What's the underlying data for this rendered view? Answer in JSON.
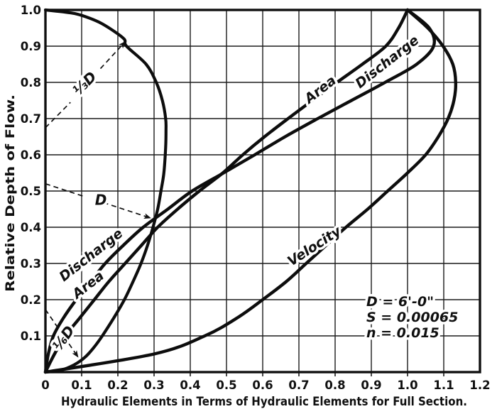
{
  "figure": {
    "background": "#ffffff",
    "ink": "#111111"
  },
  "chart_data": {
    "type": "line",
    "xlabel": "Hydraulic Elements in Terms of Hydraulic Elements for Full Section.",
    "ylabel": "Relative Depth of Flow.",
    "xlim": [
      0,
      1.2
    ],
    "ylim": [
      0,
      1.0
    ],
    "grid": "on, 0.1 spacing on both axes",
    "x_tick_labels": [
      "0",
      "0.1",
      "0.2",
      "0.3",
      "0.4",
      "0.5",
      "0.6",
      "0.7",
      "0.8",
      "0.9",
      "1.0",
      "1.1",
      "1.2"
    ],
    "y_tick_labels_top_to_bottom": [
      "1.0",
      "0.9",
      "0.8",
      "0.7",
      "0.6",
      "0.5",
      "0.4",
      "0.3",
      "0.2",
      "0.1"
    ],
    "series": [
      {
        "name": "Area",
        "depth": [
          0,
          0.05,
          0.1,
          0.15,
          0.2,
          0.25,
          0.3,
          0.35,
          0.4,
          0.45,
          0.5,
          0.55,
          0.6,
          0.65,
          0.7,
          0.75,
          0.8,
          0.85,
          0.9,
          0.95,
          1.0
        ],
        "values": [
          0,
          0.025,
          0.055,
          0.095,
          0.135,
          0.175,
          0.22,
          0.265,
          0.31,
          0.365,
          0.425,
          0.49,
          0.545,
          0.605,
          0.67,
          0.737,
          0.805,
          0.875,
          0.94,
          0.975,
          1.0
        ]
      },
      {
        "name": "Discharge",
        "depth": [
          0,
          0.05,
          0.1,
          0.15,
          0.2,
          0.25,
          0.3,
          0.35,
          0.4,
          0.45,
          0.5,
          0.55,
          0.6,
          0.65,
          0.7,
          0.75,
          0.8,
          0.85,
          0.9,
          0.95,
          1.0
        ],
        "values": [
          0,
          0.008,
          0.022,
          0.05,
          0.085,
          0.125,
          0.165,
          0.215,
          0.27,
          0.338,
          0.405,
          0.492,
          0.578,
          0.662,
          0.752,
          0.845,
          0.938,
          1.025,
          1.072,
          1.06,
          1.0
        ]
      },
      {
        "name": "Velocity",
        "depth": [
          0,
          0.05,
          0.1,
          0.15,
          0.2,
          0.25,
          0.3,
          0.35,
          0.4,
          0.45,
          0.5,
          0.55,
          0.6,
          0.65,
          0.7,
          0.75,
          0.8,
          0.85,
          0.9,
          0.95,
          1.0
        ],
        "values": [
          0,
          0.3,
          0.44,
          0.53,
          0.6,
          0.665,
          0.72,
          0.775,
          0.83,
          0.89,
          0.945,
          1.0,
          1.05,
          1.085,
          1.112,
          1.128,
          1.133,
          1.125,
          1.098,
          1.056,
          1.0
        ]
      }
    ],
    "section_profile": {
      "name": "egg-shaped-section-half-profile",
      "depth": [
        1.0,
        0.99,
        0.97,
        0.95,
        0.92,
        0.9,
        0.85,
        0.8,
        0.75,
        0.7,
        0.667,
        0.62,
        0.55,
        0.5,
        0.45,
        0.4,
        0.35,
        0.3,
        0.25,
        0.2,
        0.15,
        0.1,
        0.067,
        0.04,
        0.02,
        0.005,
        0
      ],
      "half_width": [
        0,
        0.081,
        0.14,
        0.176,
        0.217,
        0.224,
        0.278,
        0.306,
        0.323,
        0.332,
        0.333,
        0.332,
        0.327,
        0.319,
        0.31,
        0.297,
        0.282,
        0.264,
        0.242,
        0.218,
        0.189,
        0.157,
        0.133,
        0.108,
        0.079,
        0.041,
        0
      ]
    },
    "section_annotations": [
      {
        "id": "one-third-d",
        "label": "⅓D",
        "label_at": [
          0.11,
          0.795
        ],
        "rotation": -45,
        "segments": [
          [
            [
              0.0,
              0.675
            ],
            [
              0.069,
              0.745
            ]
          ],
          [
            [
              0.152,
              0.838
            ],
            [
              0.22,
              0.912
            ]
          ]
        ]
      },
      {
        "id": "d",
        "label": "D",
        "label_at": [
          0.153,
          0.4725
        ],
        "rotation": 0,
        "segments": [
          [
            [
              0.0,
              0.52
            ],
            [
              0.11,
              0.484
            ]
          ],
          [
            [
              0.16,
              0.468
            ],
            [
              0.29,
              0.4255
            ]
          ]
        ]
      },
      {
        "id": "one-sixth-d",
        "label": "⅙D",
        "label_at": [
          0.052,
          0.092
        ],
        "rotation": -55,
        "segments": [
          [
            [
              0.0,
              0.173
            ],
            [
              0.036,
              0.12
            ]
          ],
          [
            [
              0.065,
              0.078
            ],
            [
              0.09,
              0.0415
            ]
          ]
        ]
      }
    ],
    "conditions": [
      "D = 6'-0\"",
      "S = 0.00065",
      "n = 0.015"
    ]
  }
}
